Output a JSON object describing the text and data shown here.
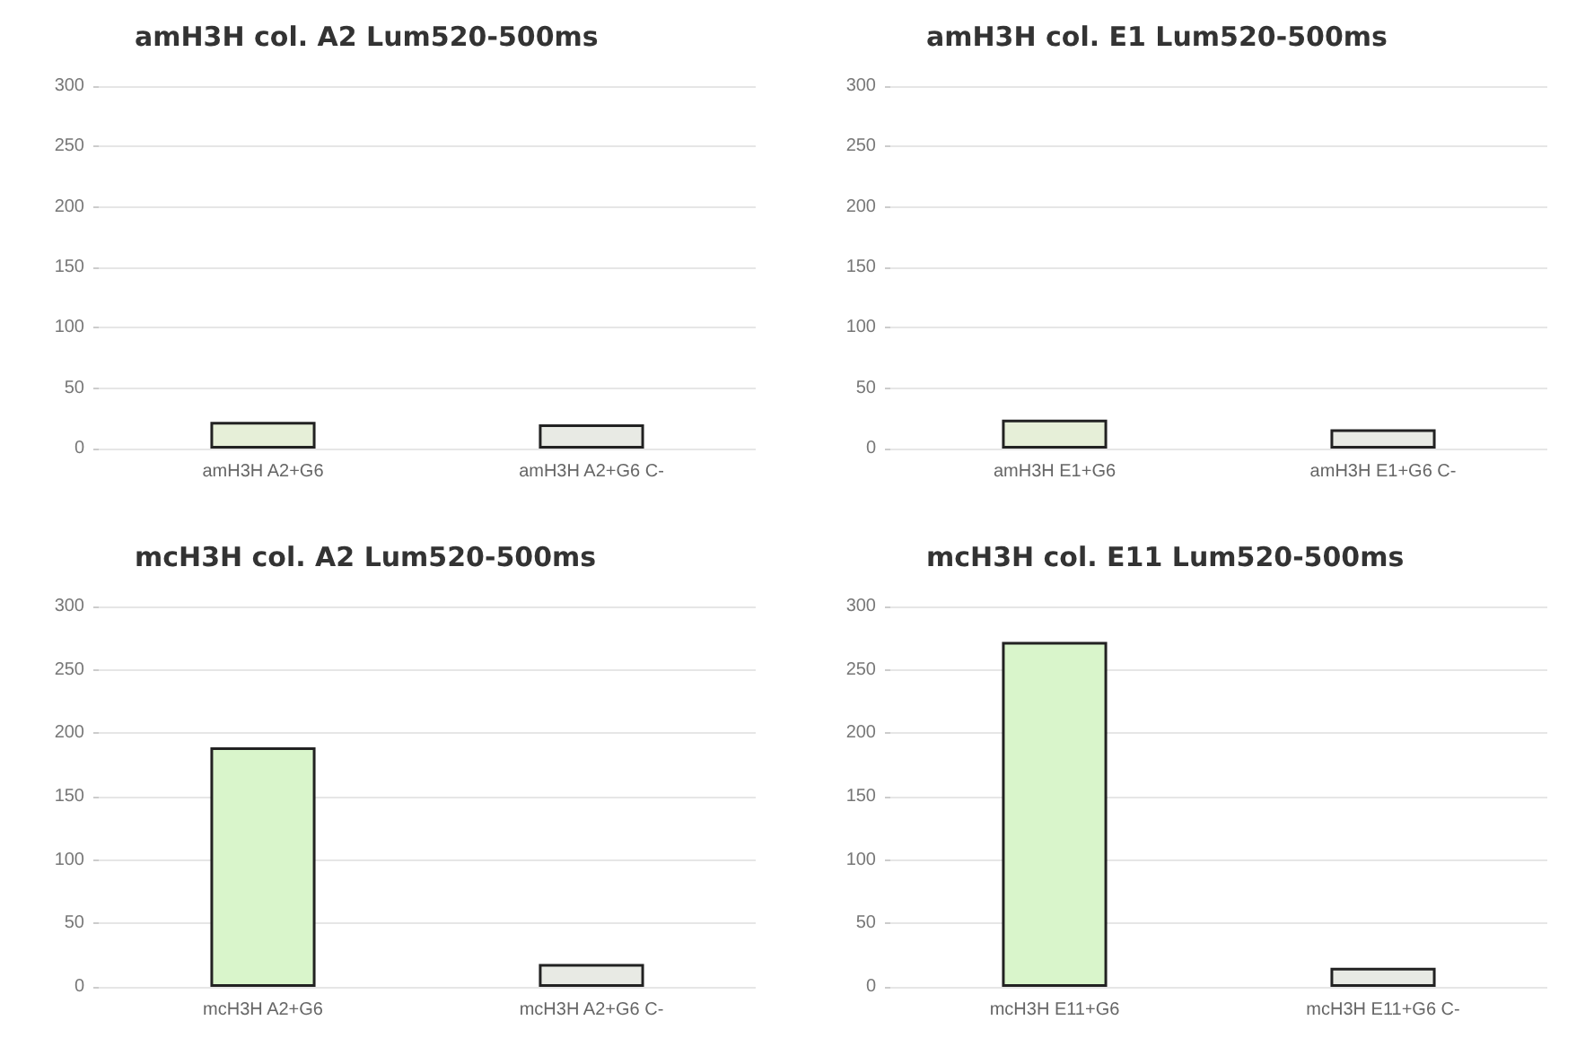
{
  "chart_data": [
    {
      "type": "bar",
      "title": "amH3H col. A2 Lum520-500ms",
      "categories": [
        "amH3H A2+G6",
        "amH3H A2+G6 C-"
      ],
      "values": [
        22,
        20
      ],
      "colors": [
        "#e6efd8",
        "#e8eae4"
      ],
      "ylim": [
        0,
        300
      ],
      "yticks": [
        0,
        50,
        100,
        150,
        200,
        250,
        300
      ],
      "grid": "y"
    },
    {
      "type": "bar",
      "title": "amH3H col. E1 Lum520-500ms",
      "categories": [
        "amH3H E1+G6",
        "amH3H E1+G6 C-"
      ],
      "values": [
        24,
        16
      ],
      "colors": [
        "#e6efd8",
        "#e8eae4"
      ],
      "ylim": [
        0,
        300
      ],
      "yticks": [
        0,
        50,
        100,
        150,
        200,
        250,
        300
      ],
      "grid": "y"
    },
    {
      "type": "bar",
      "title": "mcH3H col. A2 Lum520-500ms",
      "categories": [
        "mcH3H A2+G6",
        "mcH3H A2+G6 C-"
      ],
      "values": [
        189,
        18
      ],
      "colors": [
        "#d9f5cb",
        "#e8eae4"
      ],
      "ylim": [
        0,
        300
      ],
      "yticks": [
        0,
        50,
        100,
        150,
        200,
        250,
        300
      ],
      "grid": "y"
    },
    {
      "type": "bar",
      "title": "mcH3H col. E11 Lum520-500ms",
      "categories": [
        "mcH3H E11+G6",
        "mcH3H E11+G6 C-"
      ],
      "values": [
        272,
        15
      ],
      "colors": [
        "#d9f5cb",
        "#e8eae4"
      ],
      "ylim": [
        0,
        300
      ],
      "yticks": [
        0,
        50,
        100,
        150,
        200,
        250,
        300
      ],
      "grid": "y"
    }
  ]
}
